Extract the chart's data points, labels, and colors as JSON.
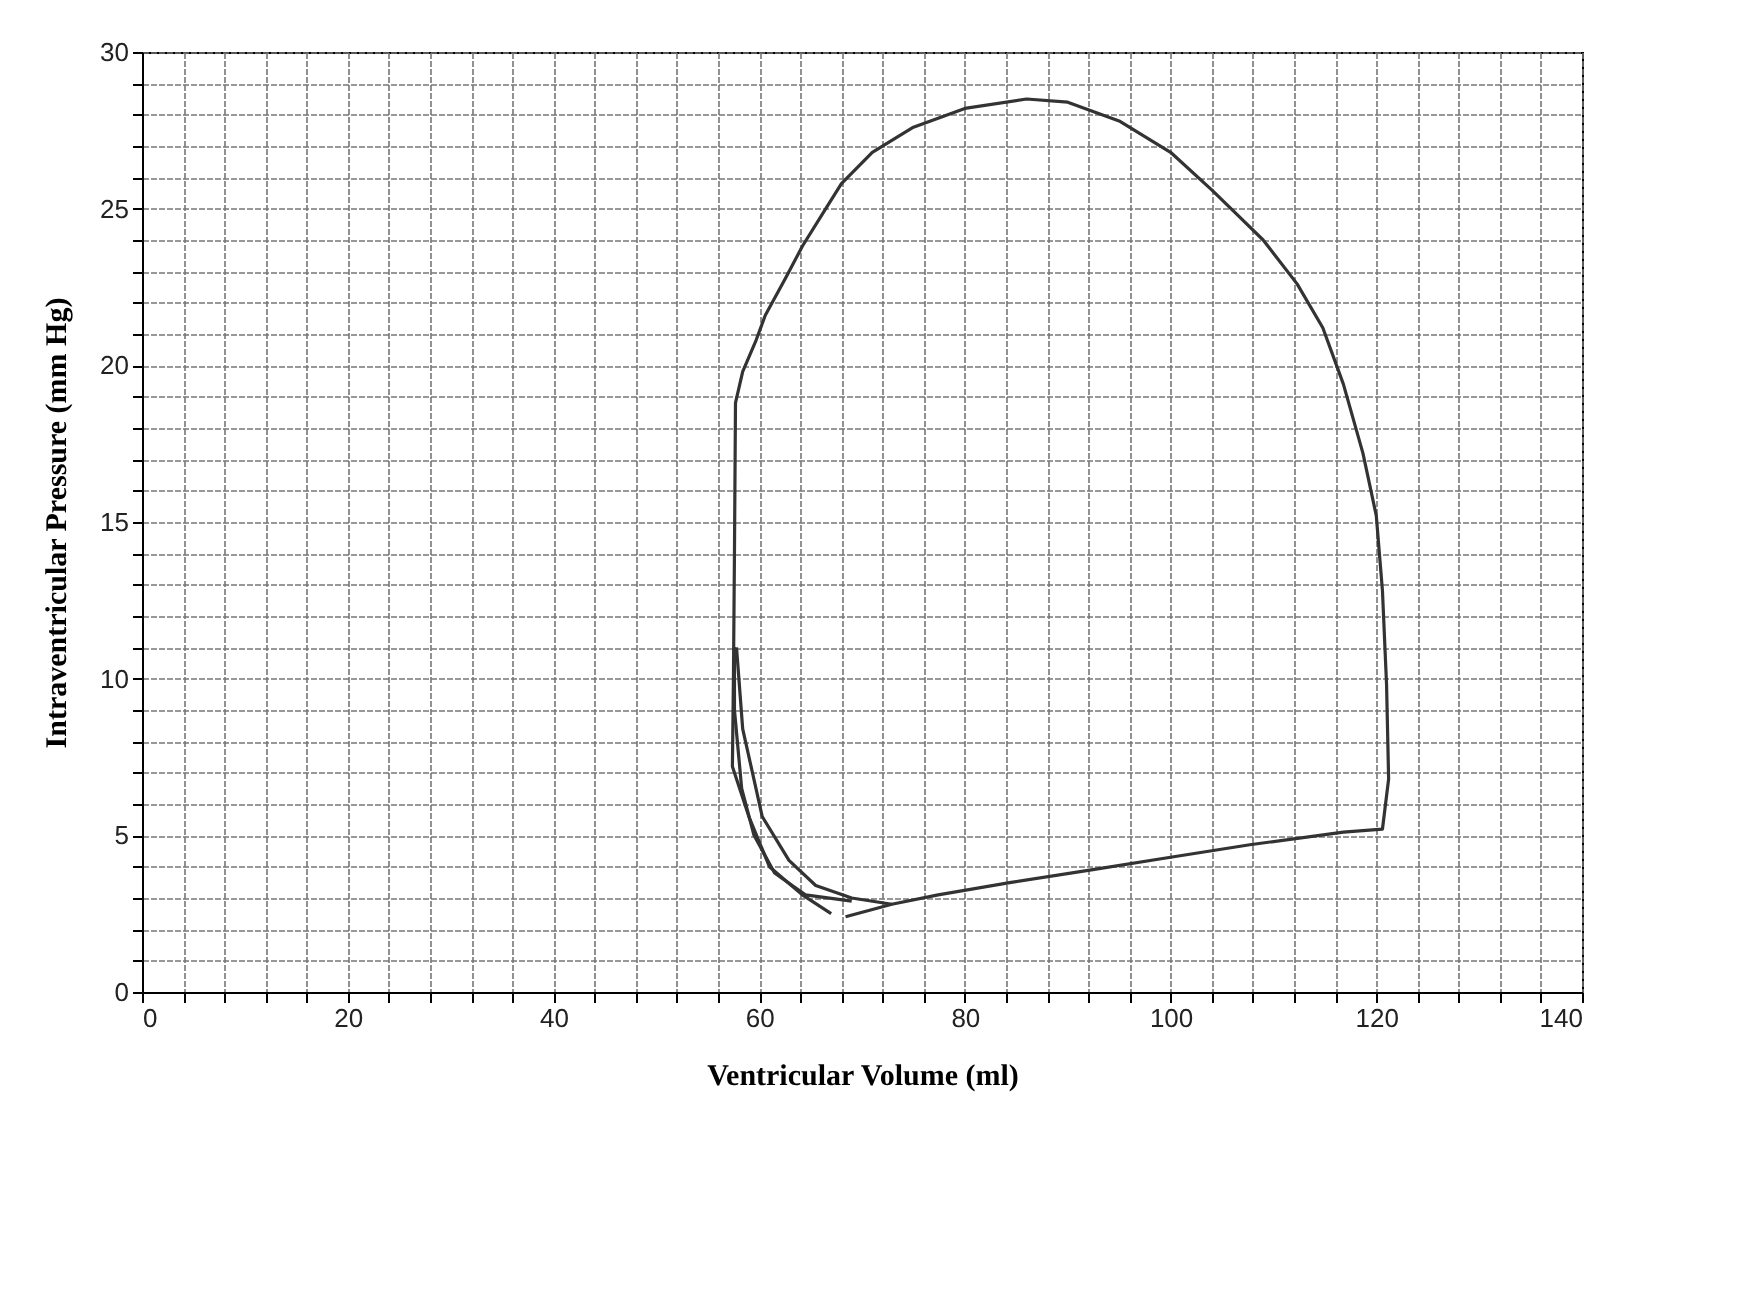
{
  "chart_data": {
    "type": "line",
    "xlabel": "Ventricular Volume (ml)",
    "ylabel": "Intraventricular Pressure (mm Hg)",
    "xlim": [
      0,
      140
    ],
    "ylim": [
      0,
      30
    ],
    "xticks": [
      0,
      {
        "value": 4,
        "label": null
      },
      {
        "value": 8,
        "label": null
      },
      {
        "value": 12,
        "label": null
      },
      {
        "value": 16,
        "label": null
      },
      20,
      {
        "value": 24,
        "label": null
      },
      {
        "value": 28,
        "label": null
      },
      {
        "value": 32,
        "label": null
      },
      {
        "value": 36,
        "label": null
      },
      40,
      {
        "value": 44,
        "label": null
      },
      {
        "value": 48,
        "label": null
      },
      {
        "value": 52,
        "label": null
      },
      {
        "value": 56,
        "label": null
      },
      60,
      {
        "value": 64,
        "label": null
      },
      {
        "value": 68,
        "label": null
      },
      {
        "value": 72,
        "label": null
      },
      {
        "value": 76,
        "label": null
      },
      80,
      {
        "value": 84,
        "label": null
      },
      {
        "value": 88,
        "label": null
      },
      {
        "value": 92,
        "label": null
      },
      {
        "value": 96,
        "label": null
      },
      100,
      {
        "value": 104,
        "label": null
      },
      {
        "value": 108,
        "label": null
      },
      {
        "value": 112,
        "label": null
      },
      {
        "value": 116,
        "label": null
      },
      120,
      {
        "value": 124,
        "label": null
      },
      {
        "value": 128,
        "label": null
      },
      {
        "value": 132,
        "label": null
      },
      {
        "value": 136,
        "label": null
      },
      140
    ],
    "yticks": [
      0,
      {
        "value": 1,
        "label": null
      },
      {
        "value": 2,
        "label": null
      },
      {
        "value": 3,
        "label": null
      },
      {
        "value": 4,
        "label": null
      },
      5,
      {
        "value": 6,
        "label": null
      },
      {
        "value": 7,
        "label": null
      },
      {
        "value": 8,
        "label": null
      },
      {
        "value": 9,
        "label": null
      },
      10,
      {
        "value": 11,
        "label": null
      },
      {
        "value": 12,
        "label": null
      },
      {
        "value": 13,
        "label": null
      },
      {
        "value": 14,
        "label": null
      },
      15,
      {
        "value": 16,
        "label": null
      },
      {
        "value": 17,
        "label": null
      },
      {
        "value": 18,
        "label": null
      },
      {
        "value": 19,
        "label": null
      },
      20,
      {
        "value": 21,
        "label": null
      },
      {
        "value": 22,
        "label": null
      },
      {
        "value": 23,
        "label": null
      },
      {
        "value": 24,
        "label": null
      },
      25,
      {
        "value": 26,
        "label": null
      },
      {
        "value": 27,
        "label": null
      },
      {
        "value": 28,
        "label": null
      },
      {
        "value": 29,
        "label": null
      },
      30
    ],
    "grid": true,
    "legend": false,
    "marker": "none",
    "line_style": "solid",
    "series": [
      {
        "color": "#333333",
        "x": [
          68.4,
          72.9,
          77.4,
          84.5,
          92.3,
          100,
          107.7,
          116.8,
          120.6,
          121.2,
          121,
          120.6,
          120,
          118.7,
          116.8,
          114.8,
          112.3,
          109,
          106.5,
          104,
          100,
          95,
          90,
          86,
          80,
          75,
          71,
          68,
          66.1,
          64.2,
          62.6,
          60.6,
          59.7,
          58.4,
          57.7,
          57.6,
          57.5,
          57.4,
          59,
          61,
          64.2,
          67
        ],
        "values": [
          2.4,
          2.8,
          3.1,
          3.5,
          3.9,
          4.3,
          4.7,
          5.1,
          5.2,
          6.8,
          9.8,
          12.8,
          15.2,
          17.2,
          19.4,
          21.2,
          22.6,
          24,
          24.8,
          25.6,
          26.8,
          27.8,
          28.4,
          28.5,
          28.2,
          27.6,
          26.8,
          25.8,
          24.8,
          23.8,
          22.8,
          21.6,
          20.8,
          19.8,
          18.8,
          14,
          10,
          7.2,
          5.6,
          4,
          3.1,
          2.5
        ]
      },
      {
        "color": "#333333",
        "x": [
          57.8,
          58.4,
          60.3,
          62.9,
          65.5,
          69,
          72.9
        ],
        "values": [
          11,
          8.4,
          5.6,
          4.2,
          3.4,
          3,
          2.8
        ]
      },
      {
        "color": "#333333",
        "x": [
          57.6,
          57.6,
          58.3,
          59.5,
          61.5,
          64.5,
          69
        ],
        "values": [
          11,
          9,
          6.5,
          5,
          3.8,
          3.1,
          2.9
        ]
      }
    ]
  }
}
